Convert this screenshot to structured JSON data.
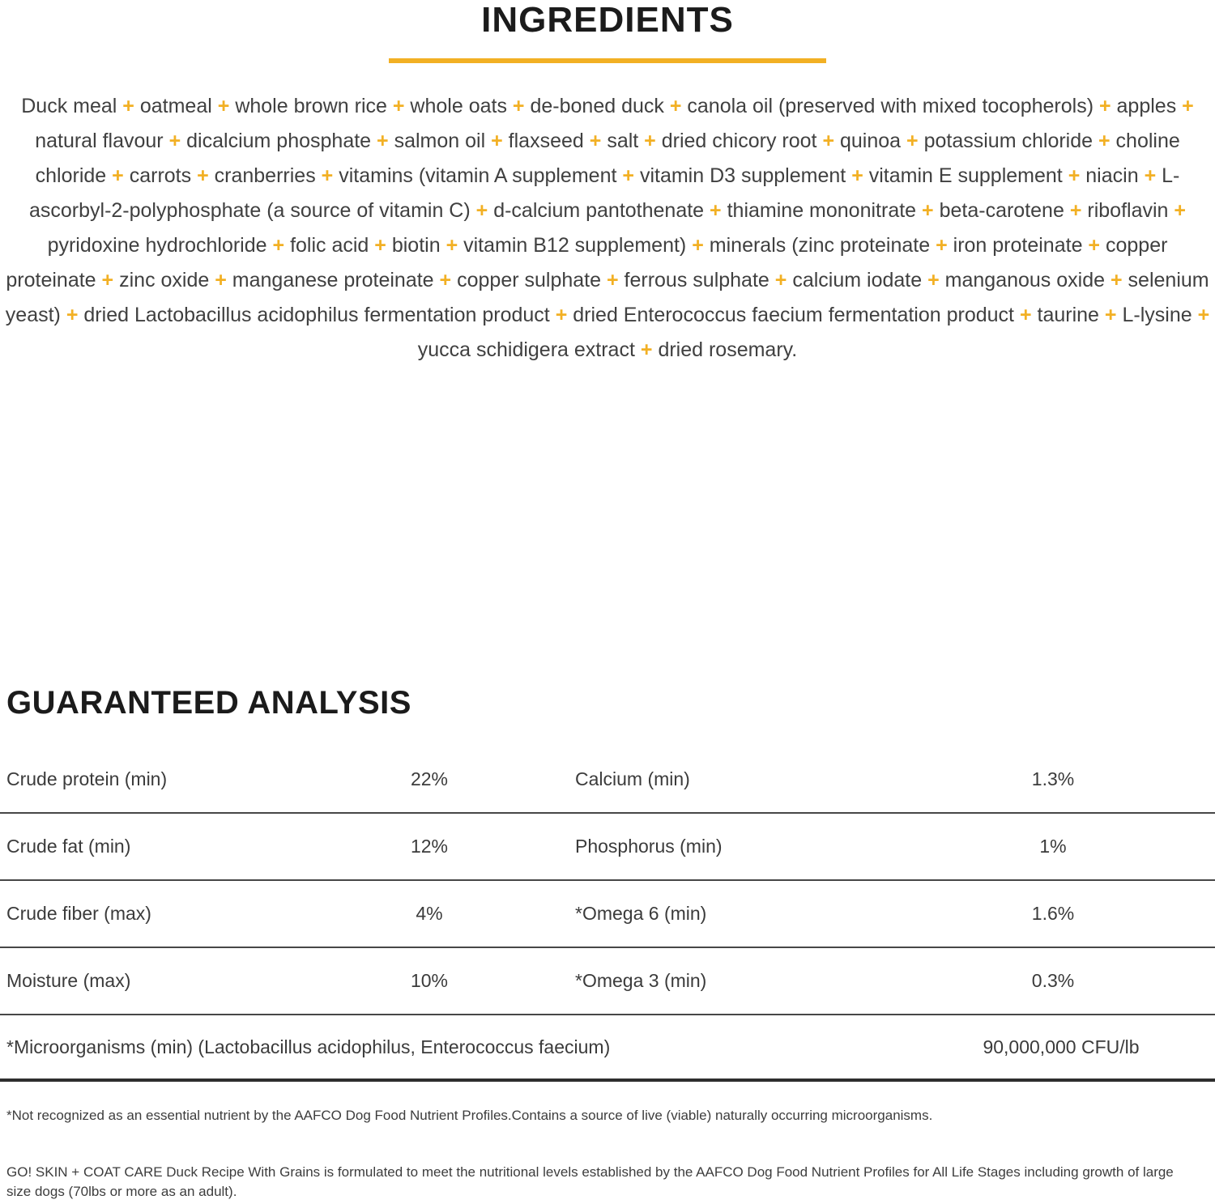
{
  "theme": {
    "accent_color": "#F2B024",
    "text_color": "#3f3f3f",
    "heading_color": "#1b1b1b"
  },
  "ingredients_section": {
    "title": "INGREDIENTS",
    "separator": "+",
    "items": [
      "Duck meal",
      "oatmeal",
      "whole brown rice",
      "whole oats",
      "de-boned duck",
      "canola oil (preserved with mixed tocopherols)",
      "apples",
      "natural flavour",
      "dicalcium phosphate",
      "salmon oil",
      "flaxseed",
      "salt",
      "dried chicory root",
      "quinoa",
      "potassium chloride",
      "choline chloride",
      "carrots",
      "cranberries",
      "vitamins (vitamin A supplement",
      "vitamin D3 supplement",
      "vitamin E supplement",
      "niacin",
      "L-ascorbyl-2-polyphosphate (a source of vitamin C)",
      "d-calcium pantothenate",
      "thiamine mononitrate",
      "beta-carotene",
      "riboflavin",
      "pyridoxine hydrochloride",
      "folic acid",
      "biotin",
      "vitamin B12 supplement)",
      "minerals (zinc proteinate",
      "iron proteinate",
      "copper proteinate",
      "zinc oxide",
      "manganese proteinate",
      "copper sulphate",
      "ferrous sulphate",
      "calcium iodate",
      "manganous oxide",
      "selenium yeast)",
      "dried Lactobacillus acidophilus fermentation product",
      "dried Enterococcus faecium fermentation product",
      "taurine",
      "L-lysine",
      "yucca schidigera extract",
      "dried rosemary."
    ]
  },
  "guaranteed_analysis": {
    "title": "GUARANTEED ANALYSIS",
    "rows": [
      {
        "left_label": "Crude protein (min)",
        "left_value": "22%",
        "right_label": "Calcium (min)",
        "right_value": "1.3%"
      },
      {
        "left_label": "Crude fat (min)",
        "left_value": "12%",
        "right_label": "Phosphorus (min)",
        "right_value": "1%"
      },
      {
        "left_label": "Crude fiber (max)",
        "left_value": "4%",
        "right_label": "*Omega 6 (min)",
        "right_value": "1.6%"
      },
      {
        "left_label": "Moisture (max)",
        "left_value": "10%",
        "right_label": "*Omega 3 (min)",
        "right_value": "0.3%"
      }
    ],
    "full_width_row": {
      "label": "*Microorganisms (min) (Lactobacillus acidophilus, Enterococcus faecium)",
      "value": "90,000,000 CFU/lb"
    }
  },
  "footnotes": {
    "note1": "*Not recognized as an essential nutrient by the AAFCO Dog Food Nutrient Profiles.Contains a source of live (viable) naturally occurring microorganisms.",
    "note2": "GO! SKIN + COAT CARE Duck Recipe With Grains is formulated to meet the nutritional levels established by the AAFCO Dog Food Nutrient Profiles for All Life Stages including growth of large size dogs (70lbs or more as an adult)."
  }
}
